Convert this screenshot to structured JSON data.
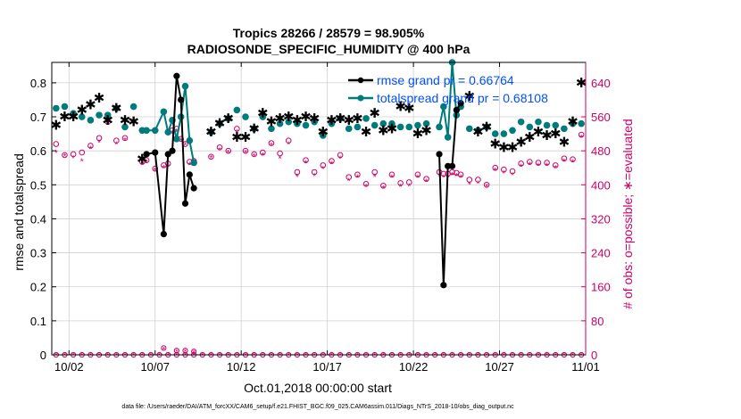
{
  "chart_data": {
    "type": "line",
    "title_line1": "Tropics 28266 / 28579 = 98.905%",
    "title_line2": "RADIOSONDE_SPECIFIC_HUMIDITY @ 400 hPa",
    "ylabel_left": "rmse and totalspread",
    "ylabel_right": "# of obs: o=possible; ∗=evaluated",
    "xlabel": "Oct.01,2018 00:00:00 start",
    "footnote": "data file: /Users/raeder/DAI/ATM_forcXX/CAM6_setup/f.e21.FHIST_BGC.f09_025.CAM6assim.011/Diags_NTrS_2018-10/obs_diag_output.nc",
    "xlim": [
      1.0,
      32.0
    ],
    "ylim_left": [
      0,
      0.86
    ],
    "ylim_right": [
      0,
      688
    ],
    "x_ticks": [
      2,
      7,
      12,
      17,
      22,
      27,
      32
    ],
    "x_tick_labels": [
      "10/02",
      "10/07",
      "10/12",
      "10/17",
      "10/22",
      "10/27",
      "11/01"
    ],
    "y_ticks_left": [
      0,
      0.1,
      0.2,
      0.3,
      0.4,
      0.5,
      0.6,
      0.7,
      0.8
    ],
    "y_tick_labels_left": [
      "0",
      "0.1",
      "0.2",
      "0.3",
      "0.4",
      "0.5",
      "0.6",
      "0.7",
      "0.8"
    ],
    "y_ticks_right": [
      0,
      80,
      160,
      240,
      320,
      400,
      480,
      560,
      640
    ],
    "y_tick_labels_right": [
      "0",
      "80",
      "160",
      "240",
      "320",
      "400",
      "480",
      "560",
      "640"
    ],
    "legend": [
      {
        "name": "rmse grand pr = 0.66764",
        "color": "#000000"
      },
      {
        "name": "totalspread grand pr = 0.68108",
        "color": "#007b7b"
      }
    ],
    "colors": {
      "rmse": "#000000",
      "spread": "#007b7b",
      "obs": "#cc0066"
    },
    "series": [
      {
        "name": "rmse",
        "x": [
          6.5,
          7.0,
          7.5,
          7.75,
          8.0,
          8.25,
          8.5,
          8.75,
          9.0,
          9.25,
          23.5,
          23.75,
          24.0,
          24.25,
          24.5,
          24.75
        ],
        "values": [
          0.59,
          0.595,
          0.355,
          0.59,
          0.6,
          0.82,
          0.75,
          0.445,
          0.53,
          0.49,
          0.59,
          0.205,
          0.555,
          0.555,
          0.72,
          0.74
        ]
      },
      {
        "name": "totalspread",
        "x": [
          6.5,
          7.0,
          7.5,
          7.75,
          8.0,
          8.25,
          8.5,
          8.75,
          9.0,
          9.25,
          23.5,
          23.75,
          24.0,
          24.25,
          24.5,
          24.75
        ],
        "values": [
          0.66,
          0.66,
          0.715,
          0.655,
          0.69,
          0.635,
          0.7,
          0.79,
          0.63,
          0.565,
          0.67,
          0.73,
          0.64,
          0.86,
          0.705,
          0.73
        ]
      },
      {
        "name": "rmse_scatter",
        "x": [
          1.25,
          1.75,
          2.25,
          2.75,
          3.25,
          3.75,
          4.25,
          4.75,
          5.25,
          5.75,
          6.25,
          10.25,
          10.75,
          11.25,
          11.75,
          12.25,
          12.75,
          13.25,
          13.75,
          14.25,
          14.75,
          15.25,
          15.75,
          16.25,
          16.75,
          17.25,
          17.75,
          18.25,
          18.75,
          19.25,
          19.75,
          20.25,
          20.75,
          21.25,
          21.75,
          22.25,
          22.75,
          25.25,
          25.75,
          26.25,
          26.75,
          27.25,
          27.75,
          28.25,
          28.75,
          29.25,
          29.75,
          30.25,
          30.75,
          31.25,
          31.75
        ],
        "values": [
          0.675,
          0.7,
          0.7,
          0.72,
          0.735,
          0.755,
          0.69,
          0.725,
          0.69,
          0.685,
          0.575,
          0.655,
          0.68,
          0.695,
          0.64,
          0.64,
          0.665,
          0.71,
          0.685,
          0.695,
          0.7,
          0.69,
          0.7,
          0.695,
          0.655,
          0.69,
          0.695,
          0.69,
          0.695,
          0.655,
          0.71,
          0.66,
          0.665,
          0.73,
          0.725,
          0.65,
          0.66,
          0.76,
          0.655,
          0.67,
          0.62,
          0.61,
          0.61,
          0.625,
          0.64,
          0.655,
          0.645,
          0.65,
          0.625,
          0.685,
          0.8
        ]
      },
      {
        "name": "totalspread_scatter",
        "x": [
          1.25,
          1.75,
          2.25,
          2.75,
          3.25,
          3.75,
          4.25,
          4.75,
          5.25,
          5.75,
          6.25,
          10.25,
          10.75,
          11.25,
          11.75,
          12.25,
          12.75,
          13.25,
          13.75,
          14.25,
          14.75,
          15.25,
          15.75,
          16.25,
          16.75,
          17.25,
          17.75,
          18.25,
          18.75,
          19.25,
          19.75,
          20.25,
          20.75,
          21.25,
          21.75,
          22.25,
          22.75,
          25.25,
          25.75,
          26.25,
          26.75,
          27.25,
          27.75,
          28.25,
          28.75,
          29.25,
          29.75,
          30.25,
          30.75,
          31.25,
          31.75
        ],
        "values": [
          0.725,
          0.73,
          0.71,
          0.7,
          0.69,
          0.705,
          0.705,
          0.725,
          0.67,
          0.73,
          0.66,
          0.655,
          0.68,
          0.695,
          0.72,
          0.7,
          0.665,
          0.7,
          0.665,
          0.68,
          0.685,
          0.68,
          0.675,
          0.685,
          0.645,
          0.68,
          0.695,
          0.665,
          0.67,
          0.695,
          0.675,
          0.68,
          0.68,
          0.67,
          0.67,
          0.675,
          0.68,
          0.665,
          0.66,
          0.67,
          0.65,
          0.65,
          0.66,
          0.685,
          0.67,
          0.685,
          0.675,
          0.675,
          0.665,
          0.68,
          0.68
        ]
      },
      {
        "name": "obs_possible",
        "x": [
          1.25,
          1.75,
          2.25,
          2.75,
          3.25,
          3.75,
          4.25,
          4.75,
          5.25,
          5.75,
          6.25,
          6.5,
          7.0,
          7.5,
          7.75,
          8.0,
          8.25,
          8.5,
          8.75,
          9.0,
          9.25,
          10.25,
          10.75,
          11.25,
          11.75,
          12.25,
          12.75,
          13.25,
          13.75,
          14.25,
          14.75,
          15.25,
          15.75,
          16.25,
          16.75,
          17.25,
          17.75,
          18.25,
          18.75,
          19.25,
          19.75,
          20.25,
          20.75,
          21.25,
          21.75,
          22.25,
          22.75,
          23.5,
          23.75,
          24.0,
          24.25,
          24.5,
          24.75,
          25.25,
          25.75,
          26.25,
          26.75,
          27.25,
          27.75,
          28.25,
          28.75,
          29.25,
          29.75,
          30.25,
          30.75,
          31.25,
          31.75
        ],
        "values": [
          496,
          470,
          472,
          476,
          492,
          510,
          548,
          504,
          510,
          584,
          454,
          458,
          438,
          446,
          450,
          528,
          532,
          508,
          496,
          454,
          456,
          466,
          488,
          480,
          532,
          480,
          472,
          476,
          498,
          474,
          504,
          430,
          458,
          430,
          446,
          456,
          470,
          418,
          424,
          402,
          430,
          398,
          424,
          404,
          406,
          424,
          414,
          430,
          426,
          426,
          430,
          428,
          424,
          412,
          412,
          400,
          440,
          436,
          432,
          450,
          454,
          452,
          452,
          446,
          462,
          460,
          518
        ],
        "possible_zero_line": 0,
        "possible_spikes_x": [
          7.5,
          8.25,
          8.75,
          9.25
        ],
        "possible_spikes_values": [
          16,
          10,
          10,
          8
        ]
      },
      {
        "name": "obs_evaluated",
        "x": [
          1.25,
          1.75,
          2.25,
          2.75,
          3.25,
          3.75,
          4.25,
          4.75,
          5.25,
          5.75,
          6.25,
          6.5,
          7.0,
          7.5,
          7.75,
          8.0,
          8.25,
          8.5,
          8.75,
          9.0,
          9.25,
          10.25,
          10.75,
          11.25,
          11.75,
          12.25,
          12.75,
          13.25,
          13.75,
          14.25,
          14.75,
          15.25,
          15.75,
          16.25,
          16.75,
          17.25,
          17.75,
          18.25,
          18.75,
          19.25,
          19.75,
          20.25,
          20.75,
          21.25,
          21.75,
          22.25,
          22.75,
          23.5,
          23.75,
          24.0,
          24.25,
          24.5,
          24.75,
          25.25,
          25.75,
          26.25,
          26.75,
          27.25,
          27.75,
          28.25,
          28.75,
          29.25,
          29.75,
          30.25,
          30.75,
          31.25,
          31.75
        ],
        "values": [
          476,
          468,
          464,
          456,
          486,
          500,
          544,
          496,
          506,
          578,
          448,
          454,
          434,
          440,
          444,
          522,
          526,
          504,
          494,
          448,
          452,
          464,
          482,
          476,
          524,
          476,
          468,
          470,
          494,
          462,
          496,
          420,
          452,
          422,
          438,
          450,
          462,
          410,
          418,
          396,
          420,
          392,
          418,
          396,
          398,
          418,
          408,
          422,
          418,
          418,
          424,
          422,
          418,
          402,
          404,
          396,
          434,
          428,
          424,
          444,
          448,
          446,
          446,
          440,
          456,
          454,
          512
        ],
        "evaluated_zero_line": 0,
        "evaluated_spikes_x": [
          7.5,
          8.25,
          8.75,
          9.25
        ],
        "evaluated_spikes_values": [
          14,
          8,
          8,
          6
        ]
      }
    ]
  }
}
